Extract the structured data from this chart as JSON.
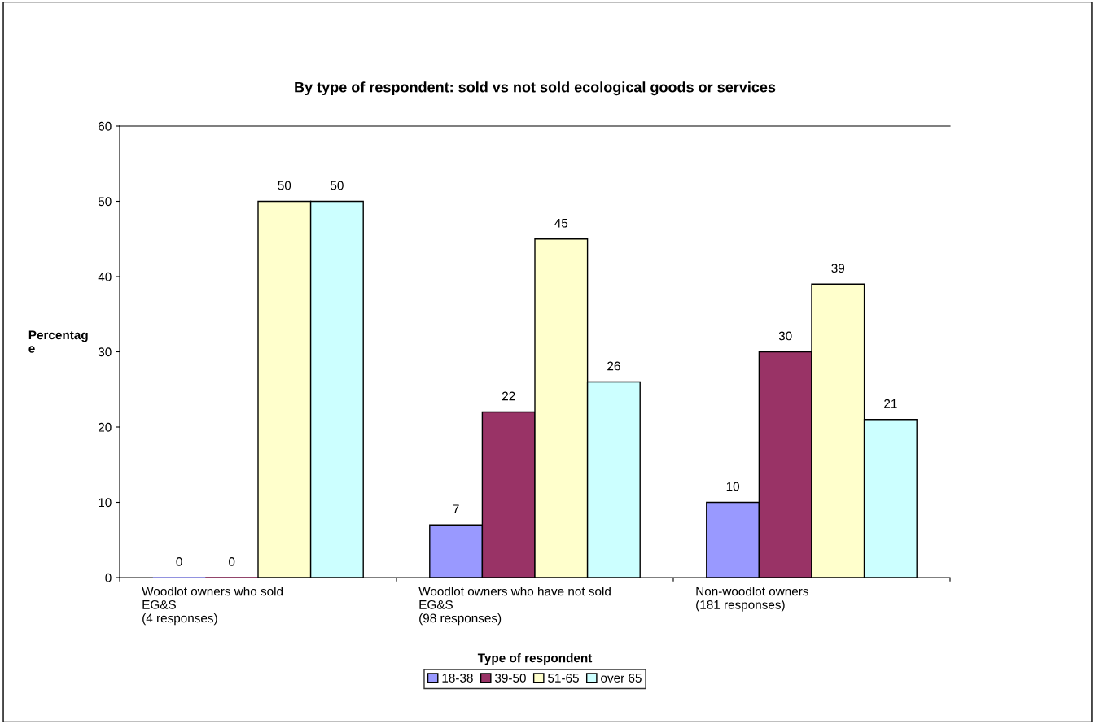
{
  "chart_data": {
    "type": "bar",
    "title": "By type of respondent: sold vs not sold ecological goods or services",
    "xlabel": "Type of respondent",
    "ylabel": "Percentag\ne",
    "categories": [
      "Woodlot owners who sold\nEG&S\n(4 responses)",
      "Woodlot owners who have not sold\nEG&S\n(98 responses)",
      "Non-woodlot owners\n(181 responses)"
    ],
    "series": [
      {
        "name": "18-38",
        "color": "#9999ff",
        "values": [
          0,
          7,
          10
        ]
      },
      {
        "name": "39-50",
        "color": "#993366",
        "values": [
          0,
          22,
          30
        ]
      },
      {
        "name": "51-65",
        "color": "#ffffcc",
        "values": [
          50,
          45,
          39
        ]
      },
      {
        "name": "over 65",
        "color": "#ccffff",
        "values": [
          50,
          26,
          21
        ]
      }
    ],
    "ylim": [
      0,
      60
    ],
    "yticks": [
      0,
      10,
      20,
      30,
      40,
      50,
      60
    ],
    "data_labels": true,
    "legend": "bottom",
    "grid": false
  }
}
